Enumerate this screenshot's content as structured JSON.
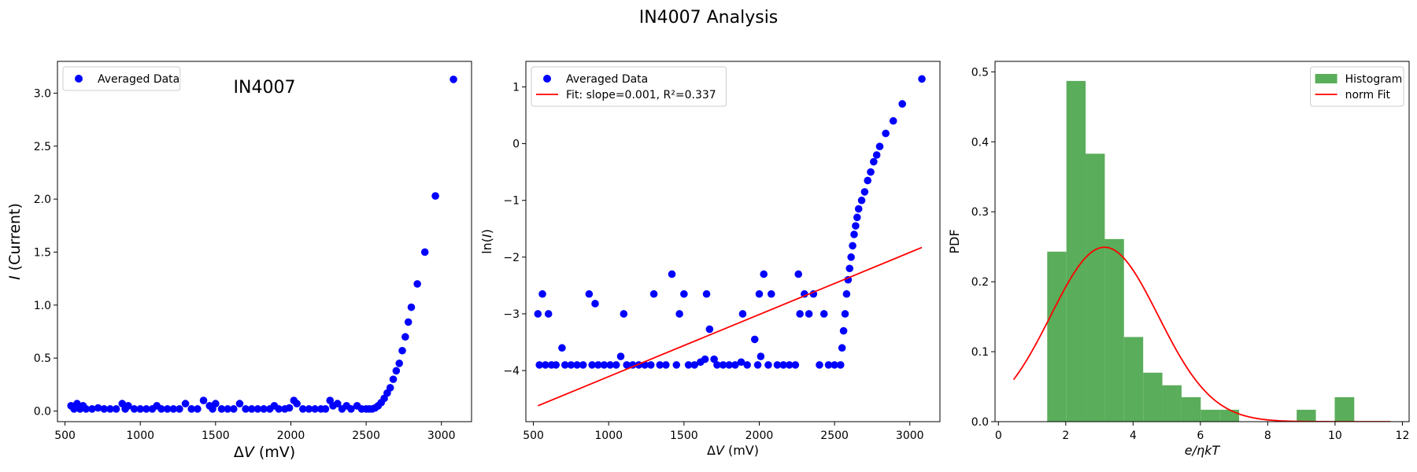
{
  "figure": {
    "title": "IN4007 Analysis"
  },
  "chart_data": [
    {
      "type": "scatter",
      "title": "",
      "annotation": "IN4007",
      "xlabel": "ΔV (mV)",
      "ylabel": "I (Current)",
      "xlim": [
        450,
        3200
      ],
      "ylim": [
        -0.1,
        3.3
      ],
      "xticks": [
        500,
        1000,
        1500,
        2000,
        2500,
        3000
      ],
      "yticks": [
        0.0,
        0.5,
        1.0,
        1.5,
        2.0,
        2.5,
        3.0
      ],
      "legend": {
        "position": "top-left",
        "entries": [
          {
            "label": "Averaged Data",
            "color": "#0000ff",
            "marker": "circle"
          }
        ]
      },
      "series": [
        {
          "name": "Averaged Data",
          "color": "#0000ff",
          "points": [
            [
              540,
              0.05
            ],
            [
              560,
              0.02
            ],
            [
              580,
              0.07
            ],
            [
              600,
              0.02
            ],
            [
              620,
              0.05
            ],
            [
              640,
              0.02
            ],
            [
              680,
              0.02
            ],
            [
              720,
              0.03
            ],
            [
              760,
              0.02
            ],
            [
              800,
              0.02
            ],
            [
              840,
              0.02
            ],
            [
              880,
              0.07
            ],
            [
              900,
              0.02
            ],
            [
              920,
              0.05
            ],
            [
              960,
              0.02
            ],
            [
              1000,
              0.02
            ],
            [
              1040,
              0.02
            ],
            [
              1080,
              0.02
            ],
            [
              1110,
              0.05
            ],
            [
              1140,
              0.02
            ],
            [
              1180,
              0.02
            ],
            [
              1220,
              0.02
            ],
            [
              1260,
              0.02
            ],
            [
              1300,
              0.07
            ],
            [
              1340,
              0.02
            ],
            [
              1380,
              0.02
            ],
            [
              1420,
              0.1
            ],
            [
              1460,
              0.05
            ],
            [
              1480,
              0.02
            ],
            [
              1500,
              0.07
            ],
            [
              1540,
              0.02
            ],
            [
              1580,
              0.02
            ],
            [
              1620,
              0.02
            ],
            [
              1660,
              0.07
            ],
            [
              1700,
              0.02
            ],
            [
              1740,
              0.02
            ],
            [
              1780,
              0.02
            ],
            [
              1820,
              0.02
            ],
            [
              1860,
              0.02
            ],
            [
              1890,
              0.05
            ],
            [
              1920,
              0.02
            ],
            [
              1960,
              0.02
            ],
            [
              1990,
              0.03
            ],
            [
              2020,
              0.1
            ],
            [
              2040,
              0.07
            ],
            [
              2080,
              0.02
            ],
            [
              2120,
              0.02
            ],
            [
              2160,
              0.02
            ],
            [
              2200,
              0.02
            ],
            [
              2230,
              0.02
            ],
            [
              2260,
              0.1
            ],
            [
              2280,
              0.05
            ],
            [
              2310,
              0.07
            ],
            [
              2340,
              0.02
            ],
            [
              2370,
              0.05
            ],
            [
              2400,
              0.02
            ],
            [
              2440,
              0.05
            ],
            [
              2470,
              0.02
            ],
            [
              2500,
              0.02
            ],
            [
              2520,
              0.02
            ],
            [
              2540,
              0.02
            ],
            [
              2560,
              0.03
            ],
            [
              2580,
              0.05
            ],
            [
              2600,
              0.08
            ],
            [
              2620,
              0.12
            ],
            [
              2640,
              0.17
            ],
            [
              2660,
              0.22
            ],
            [
              2680,
              0.3
            ],
            [
              2700,
              0.38
            ],
            [
              2720,
              0.45
            ],
            [
              2740,
              0.57
            ],
            [
              2760,
              0.7
            ],
            [
              2780,
              0.84
            ],
            [
              2800,
              0.98
            ],
            [
              2840,
              1.2
            ],
            [
              2890,
              1.5
            ],
            [
              2960,
              2.03
            ],
            [
              3080,
              3.13
            ]
          ]
        }
      ]
    },
    {
      "type": "scatter",
      "title": "",
      "xlabel": "ΔV (mV)",
      "ylabel": "ln(I)",
      "xlim": [
        450,
        3200
      ],
      "ylim": [
        -4.9,
        1.45
      ],
      "xticks": [
        500,
        1000,
        1500,
        2000,
        2500,
        3000
      ],
      "yticks": [
        -4,
        -3,
        -2,
        -1,
        0,
        1
      ],
      "legend": {
        "position": "top-left",
        "entries": [
          {
            "label": "Averaged Data",
            "color": "#0000ff",
            "marker": "circle"
          },
          {
            "label": "Fit: slope=0.001, R²=0.337",
            "color": "#ff0000",
            "marker": "line"
          }
        ]
      },
      "series": [
        {
          "name": "Averaged Data",
          "color": "#0000ff",
          "points": [
            [
              530,
              -3.0
            ],
            [
              540,
              -3.9
            ],
            [
              560,
              -2.65
            ],
            [
              580,
              -3.9
            ],
            [
              600,
              -3.0
            ],
            [
              620,
              -3.9
            ],
            [
              650,
              -3.9
            ],
            [
              690,
              -3.6
            ],
            [
              710,
              -3.9
            ],
            [
              750,
              -3.9
            ],
            [
              790,
              -3.9
            ],
            [
              830,
              -3.9
            ],
            [
              870,
              -2.65
            ],
            [
              890,
              -3.9
            ],
            [
              910,
              -2.82
            ],
            [
              930,
              -3.9
            ],
            [
              970,
              -3.9
            ],
            [
              1010,
              -3.9
            ],
            [
              1050,
              -3.9
            ],
            [
              1080,
              -3.75
            ],
            [
              1100,
              -3.0
            ],
            [
              1120,
              -3.9
            ],
            [
              1160,
              -3.9
            ],
            [
              1200,
              -3.9
            ],
            [
              1240,
              -3.9
            ],
            [
              1280,
              -3.9
            ],
            [
              1300,
              -2.65
            ],
            [
              1340,
              -3.9
            ],
            [
              1380,
              -3.9
            ],
            [
              1420,
              -2.3
            ],
            [
              1450,
              -3.9
            ],
            [
              1470,
              -3.0
            ],
            [
              1500,
              -2.65
            ],
            [
              1530,
              -3.9
            ],
            [
              1570,
              -3.9
            ],
            [
              1610,
              -3.85
            ],
            [
              1640,
              -3.8
            ],
            [
              1650,
              -2.65
            ],
            [
              1670,
              -3.27
            ],
            [
              1700,
              -3.8
            ],
            [
              1720,
              -3.9
            ],
            [
              1760,
              -3.9
            ],
            [
              1800,
              -3.9
            ],
            [
              1840,
              -3.9
            ],
            [
              1880,
              -3.85
            ],
            [
              1890,
              -3.0
            ],
            [
              1920,
              -3.9
            ],
            [
              1970,
              -3.45
            ],
            [
              1990,
              -3.9
            ],
            [
              2000,
              -2.65
            ],
            [
              2010,
              -3.75
            ],
            [
              2030,
              -2.3
            ],
            [
              2060,
              -3.9
            ],
            [
              2080,
              -2.65
            ],
            [
              2120,
              -3.9
            ],
            [
              2160,
              -3.9
            ],
            [
              2200,
              -3.9
            ],
            [
              2240,
              -3.9
            ],
            [
              2260,
              -2.3
            ],
            [
              2270,
              -3.0
            ],
            [
              2300,
              -2.65
            ],
            [
              2330,
              -3.0
            ],
            [
              2360,
              -2.65
            ],
            [
              2400,
              -3.9
            ],
            [
              2430,
              -3.0
            ],
            [
              2460,
              -3.9
            ],
            [
              2500,
              -3.9
            ],
            [
              2540,
              -3.9
            ],
            [
              2550,
              -3.6
            ],
            [
              2560,
              -3.3
            ],
            [
              2570,
              -3.0
            ],
            [
              2580,
              -2.65
            ],
            [
              2590,
              -2.4
            ],
            [
              2600,
              -2.2
            ],
            [
              2610,
              -2.0
            ],
            [
              2620,
              -1.8
            ],
            [
              2630,
              -1.6
            ],
            [
              2640,
              -1.45
            ],
            [
              2650,
              -1.3
            ],
            [
              2660,
              -1.15
            ],
            [
              2680,
              -1.0
            ],
            [
              2700,
              -0.85
            ],
            [
              2720,
              -0.65
            ],
            [
              2740,
              -0.5
            ],
            [
              2760,
              -0.32
            ],
            [
              2780,
              -0.2
            ],
            [
              2800,
              -0.05
            ],
            [
              2840,
              0.18
            ],
            [
              2890,
              0.4
            ],
            [
              2950,
              0.7
            ],
            [
              3080,
              1.14
            ]
          ]
        },
        {
          "name": "Fit: slope=0.001, R²=0.337",
          "color": "#ff0000",
          "line": [
            [
              530,
              -4.62
            ],
            [
              3080,
              -1.83
            ]
          ]
        }
      ]
    },
    {
      "type": "bar",
      "subtype": "histogram",
      "title": "",
      "xlabel": "e/ηkT",
      "ylabel": "PDF",
      "xlim": [
        -0.1,
        12.2
      ],
      "ylim": [
        0,
        0.515
      ],
      "xticks": [
        0,
        2,
        4,
        6,
        8,
        10,
        12
      ],
      "yticks": [
        0.0,
        0.1,
        0.2,
        0.3,
        0.4,
        0.5
      ],
      "legend": {
        "position": "top-right",
        "entries": [
          {
            "label": "Histogram",
            "color": "#5aad5a",
            "marker": "patch"
          },
          {
            "label": "norm Fit",
            "color": "#ff0000",
            "marker": "line"
          }
        ]
      },
      "series": [
        {
          "name": "Histogram",
          "color": "#5aad5a",
          "bins": [
            [
              1.45,
              2.02,
              0.243
            ],
            [
              2.02,
              2.59,
              0.487
            ],
            [
              2.59,
              3.16,
              0.383
            ],
            [
              3.16,
              3.73,
              0.261
            ],
            [
              3.73,
              4.3,
              0.121
            ],
            [
              4.3,
              4.87,
              0.07
            ],
            [
              4.87,
              5.44,
              0.052
            ],
            [
              5.44,
              6.01,
              0.035
            ],
            [
              6.01,
              6.58,
              0.017
            ],
            [
              6.58,
              7.15,
              0.017
            ],
            [
              8.86,
              9.43,
              0.017
            ],
            [
              9.99,
              10.57,
              0.035
            ]
          ]
        },
        {
          "name": "norm Fit",
          "color": "#ff0000",
          "mean": 3.15,
          "std": 1.6,
          "range": [
            0.45,
            11.65
          ]
        }
      ]
    }
  ]
}
